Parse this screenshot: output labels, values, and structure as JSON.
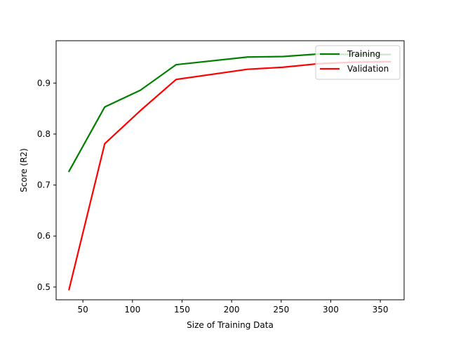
{
  "chart_data": {
    "type": "line",
    "title": "",
    "xlabel": "Size of Training Data",
    "ylabel": "Score (R2)",
    "xlim": [
      23,
      374
    ],
    "ylim": [
      0.475,
      0.983
    ],
    "xticks": [
      50,
      100,
      150,
      200,
      250,
      300,
      350
    ],
    "yticks": [
      0.5,
      0.6,
      0.7,
      0.8,
      0.9
    ],
    "grid": false,
    "legend_position": "top-right",
    "x": [
      36,
      72,
      108,
      144,
      216,
      252,
      288,
      324,
      360
    ],
    "series": [
      {
        "name": "Training",
        "color": "#008000",
        "values": [
          0.727,
          0.853,
          0.886,
          0.936,
          0.951,
          0.952,
          0.957,
          0.956,
          0.956
        ]
      },
      {
        "name": "Validation",
        "color": "#ff0000",
        "values": [
          0.495,
          0.781,
          0.846,
          0.907,
          0.927,
          0.931,
          0.938,
          0.941,
          0.942
        ]
      }
    ]
  }
}
